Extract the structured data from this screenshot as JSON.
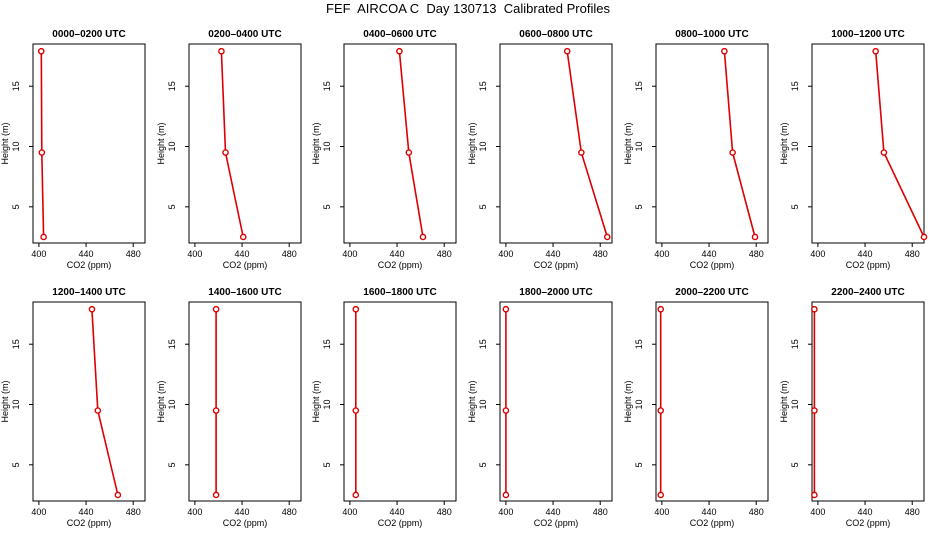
{
  "title": "FEF  AIRCOA C  Day 130713  Calibrated Profiles",
  "chart_data": {
    "type": "line",
    "title": "FEF  AIRCOA C  Day 130713  Calibrated Profiles",
    "xlabel": "CO2 (ppm)",
    "ylabel": "Height (m)",
    "xlim": [
      395,
      490
    ],
    "ylim": [
      2,
      18.5
    ],
    "x_ticks": [
      "400",
      "440",
      "480"
    ],
    "y_ticks": [
      "5",
      "10",
      "15"
    ],
    "line_color": "#dd0000",
    "panels": [
      {
        "title": "0000–0200 UTC",
        "points": [
          {
            "co2": 402,
            "height": 17.9
          },
          {
            "co2": 402.5,
            "height": 9.5
          },
          {
            "co2": 404,
            "height": 2.5
          }
        ]
      },
      {
        "title": "0200–0400 UTC",
        "points": [
          {
            "co2": 422.5,
            "height": 17.9
          },
          {
            "co2": 426,
            "height": 9.5
          },
          {
            "co2": 441,
            "height": 2.5
          }
        ]
      },
      {
        "title": "0400–0600 UTC",
        "points": [
          {
            "co2": 442,
            "height": 17.9
          },
          {
            "co2": 450,
            "height": 9.5
          },
          {
            "co2": 462,
            "height": 2.5
          }
        ]
      },
      {
        "title": "0600–0800 UTC",
        "points": [
          {
            "co2": 452,
            "height": 17.9
          },
          {
            "co2": 464,
            "height": 9.5
          },
          {
            "co2": 486,
            "height": 2.5
          }
        ]
      },
      {
        "title": "0800–1000 UTC",
        "points": [
          {
            "co2": 453,
            "height": 17.9
          },
          {
            "co2": 460,
            "height": 9.5
          },
          {
            "co2": 479,
            "height": 2.5
          }
        ]
      },
      {
        "title": "1000–1200 UTC",
        "points": [
          {
            "co2": 449,
            "height": 17.9
          },
          {
            "co2": 456,
            "height": 9.5
          },
          {
            "co2": 490,
            "height": 2.5
          }
        ]
      },
      {
        "title": "1200–1400 UTC",
        "points": [
          {
            "co2": 445,
            "height": 17.9
          },
          {
            "co2": 450,
            "height": 9.5
          },
          {
            "co2": 467,
            "height": 2.5
          }
        ]
      },
      {
        "title": "1400–1600 UTC",
        "points": [
          {
            "co2": 418,
            "height": 17.9
          },
          {
            "co2": 418,
            "height": 9.5
          },
          {
            "co2": 418,
            "height": 2.5
          }
        ]
      },
      {
        "title": "1600–1800 UTC",
        "points": [
          {
            "co2": 405,
            "height": 17.9
          },
          {
            "co2": 405,
            "height": 9.5
          },
          {
            "co2": 405,
            "height": 2.5
          }
        ]
      },
      {
        "title": "1800–2000 UTC",
        "points": [
          {
            "co2": 400,
            "height": 17.9
          },
          {
            "co2": 400,
            "height": 9.5
          },
          {
            "co2": 400,
            "height": 2.5
          }
        ]
      },
      {
        "title": "2000–2200 UTC",
        "points": [
          {
            "co2": 399,
            "height": 17.9
          },
          {
            "co2": 399,
            "height": 9.5
          },
          {
            "co2": 399,
            "height": 2.5
          }
        ]
      },
      {
        "title": "2200–2400 UTC",
        "points": [
          {
            "co2": 397,
            "height": 17.9
          },
          {
            "co2": 397,
            "height": 9.5
          },
          {
            "co2": 397,
            "height": 2.5
          }
        ]
      }
    ]
  }
}
